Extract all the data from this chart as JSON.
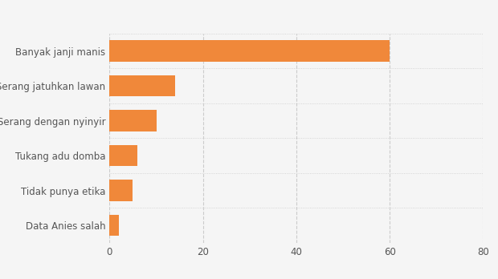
{
  "categories": [
    "Data Anies salah",
    "Tidak punya etika",
    "Tukang adu domba",
    "Serang dengan nyinyir",
    "Serang jatuhkan lawan",
    "Banyak janji manis"
  ],
  "values": [
    2,
    5,
    6,
    10,
    14,
    60
  ],
  "bar_color": "#f0883a",
  "background_color": "#f5f5f5",
  "xlim": [
    0,
    80
  ],
  "xticks": [
    0,
    20,
    40,
    60,
    80
  ],
  "grid_color": "#cccccc",
  "label_fontsize": 8.5,
  "tick_fontsize": 8.5,
  "bar_height": 0.62
}
